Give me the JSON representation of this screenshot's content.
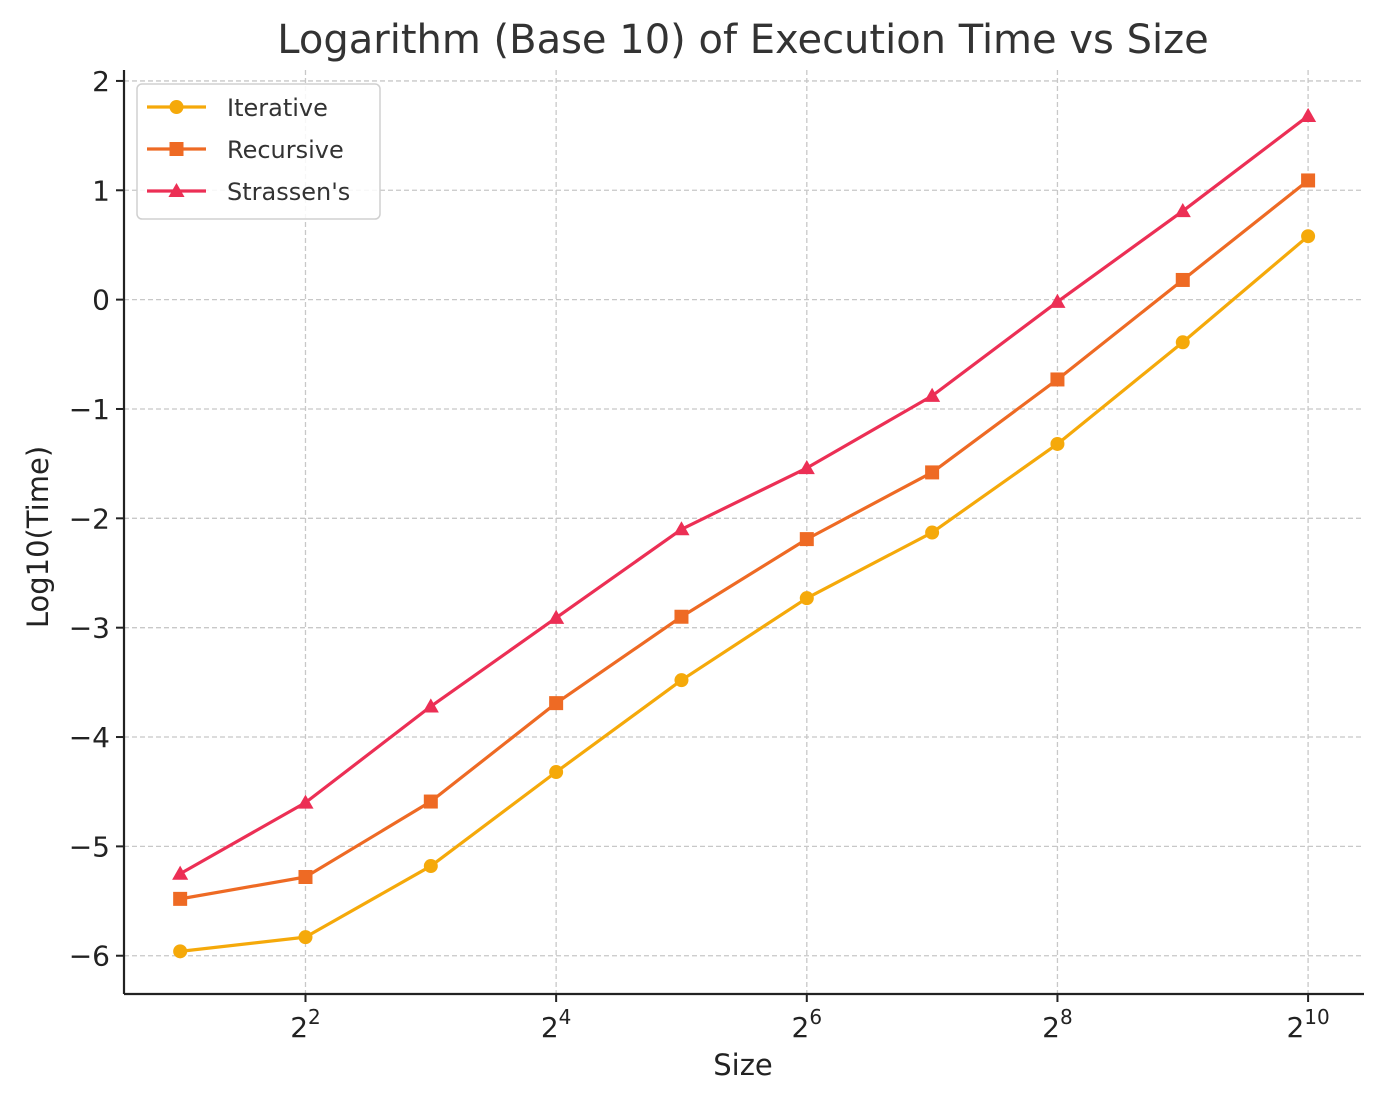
{
  "chart_data": {
    "type": "line",
    "title": "Logarithm (Base 10) of Execution Time vs Size",
    "xlabel": "Size",
    "ylabel": "Log10(Time)",
    "x_scale": "log2",
    "x": [
      2,
      4,
      8,
      16,
      32,
      64,
      128,
      256,
      512,
      1024
    ],
    "x_ticks": [
      {
        "value": 4,
        "base": "2",
        "exp": "2"
      },
      {
        "value": 16,
        "base": "2",
        "exp": "4"
      },
      {
        "value": 64,
        "base": "2",
        "exp": "6"
      },
      {
        "value": 256,
        "base": "2",
        "exp": "8"
      },
      {
        "value": 1024,
        "base": "2",
        "exp": "10"
      }
    ],
    "y_ticks": [
      -6,
      -5,
      -4,
      -3,
      -2,
      -1,
      0,
      1,
      2
    ],
    "y_tick_labels": [
      "−6",
      "−5",
      "−4",
      "−3",
      "−2",
      "−1",
      "0",
      "1",
      "2"
    ],
    "xlim": [
      1.466,
      1395
    ],
    "ylim": [
      -6.35,
      2.1
    ],
    "grid": true,
    "legend_position": "top-left",
    "series": [
      {
        "name": "Iterative",
        "color": "#f5a90a",
        "marker": "circle",
        "values": [
          -5.96,
          -5.83,
          -5.18,
          -4.32,
          -3.48,
          -2.73,
          -2.13,
          -1.32,
          -0.39,
          0.58
        ]
      },
      {
        "name": "Recursive",
        "color": "#ee6a24",
        "marker": "square",
        "values": [
          -5.48,
          -5.28,
          -4.59,
          -3.69,
          -2.9,
          -2.19,
          -1.58,
          -0.73,
          0.18,
          1.09
        ]
      },
      {
        "name": "Strassen's",
        "color": "#ec2f55",
        "marker": "triangle",
        "values": [
          -5.25,
          -4.6,
          -3.72,
          -2.91,
          -2.1,
          -1.54,
          -0.88,
          -0.02,
          0.81,
          1.68
        ]
      }
    ]
  }
}
